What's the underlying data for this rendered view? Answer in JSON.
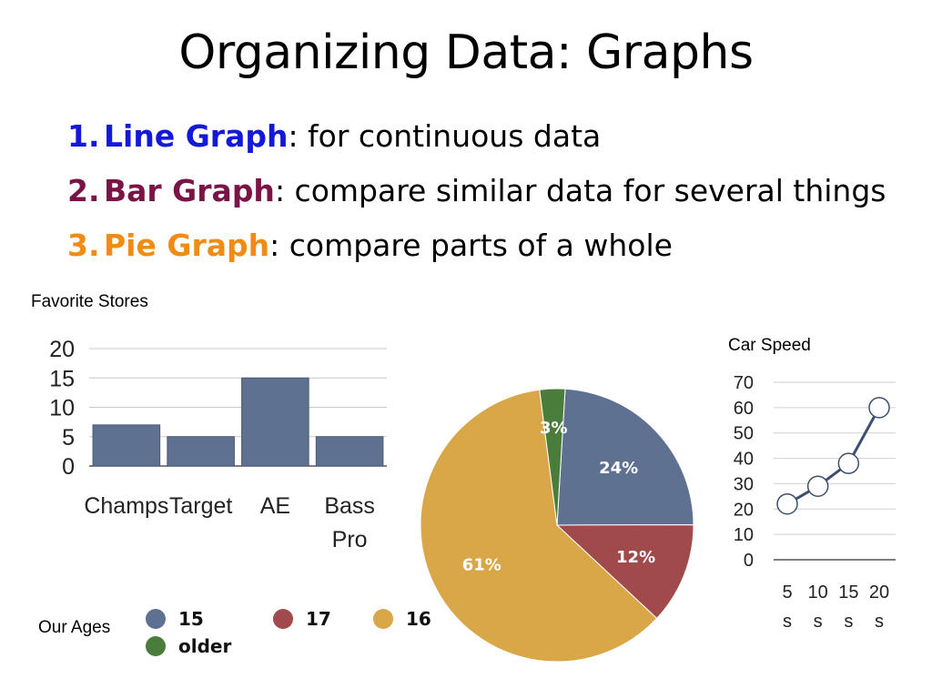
{
  "slide": {
    "title": "Organizing Data: Graphs",
    "items": [
      {
        "num": "1.",
        "term": "Line Graph",
        "desc": ": for continuous data",
        "color": "#1418d8"
      },
      {
        "num": "2.",
        "term": "Bar Graph",
        "desc": ": compare similar data for several things",
        "color": "#7a1446"
      },
      {
        "num": "3.",
        "term": "Pie Graph",
        "desc": ": compare parts of a whole",
        "color": "#f08c14"
      }
    ],
    "bar_caption": "Favorite Stores",
    "line_caption": "Car Speed",
    "pie_caption": "Our Ages"
  },
  "chart_data": [
    {
      "type": "bar",
      "title": "Favorite Stores",
      "categories": [
        "Champs",
        "Target",
        "AE",
        "Bass Pro"
      ],
      "category_lines": [
        [
          "Champs"
        ],
        [
          "Target"
        ],
        [
          "AE"
        ],
        [
          "Bass",
          "Pro"
        ]
      ],
      "values": [
        7,
        5,
        15,
        5
      ],
      "ylim": [
        0,
        20
      ],
      "yticks": [
        "0",
        "5",
        "10",
        "15",
        "20"
      ],
      "grid": true,
      "color": "#5f7190"
    },
    {
      "type": "pie",
      "title": "Our Ages",
      "slices": [
        {
          "label": "15",
          "value": 24,
          "text": "24%",
          "color": "#5f7190"
        },
        {
          "label": "17",
          "value": 12,
          "text": "12%",
          "color": "#a04a4c"
        },
        {
          "label": "16",
          "value": 61,
          "text": "61%",
          "color": "#d9a648"
        },
        {
          "label": "older",
          "value": 3,
          "text": "3%",
          "color": "#4a7d3c"
        }
      ],
      "legend": [
        "15",
        "17",
        "16",
        "older"
      ],
      "legend_placement": "bottom-left"
    },
    {
      "type": "line",
      "title": "Car Speed",
      "x": [
        "5 s",
        "10 s",
        "15 s",
        "20 s"
      ],
      "x_lines": [
        [
          "5",
          "s"
        ],
        [
          "10",
          "s"
        ],
        [
          "15",
          "s"
        ],
        [
          "20",
          "s"
        ]
      ],
      "y": [
        22,
        29,
        38,
        60
      ],
      "ylim": [
        0,
        70
      ],
      "yticks": [
        "0",
        "10",
        "20",
        "30",
        "40",
        "50",
        "60",
        "70"
      ],
      "grid": true,
      "color": "#3d4f6e"
    }
  ]
}
